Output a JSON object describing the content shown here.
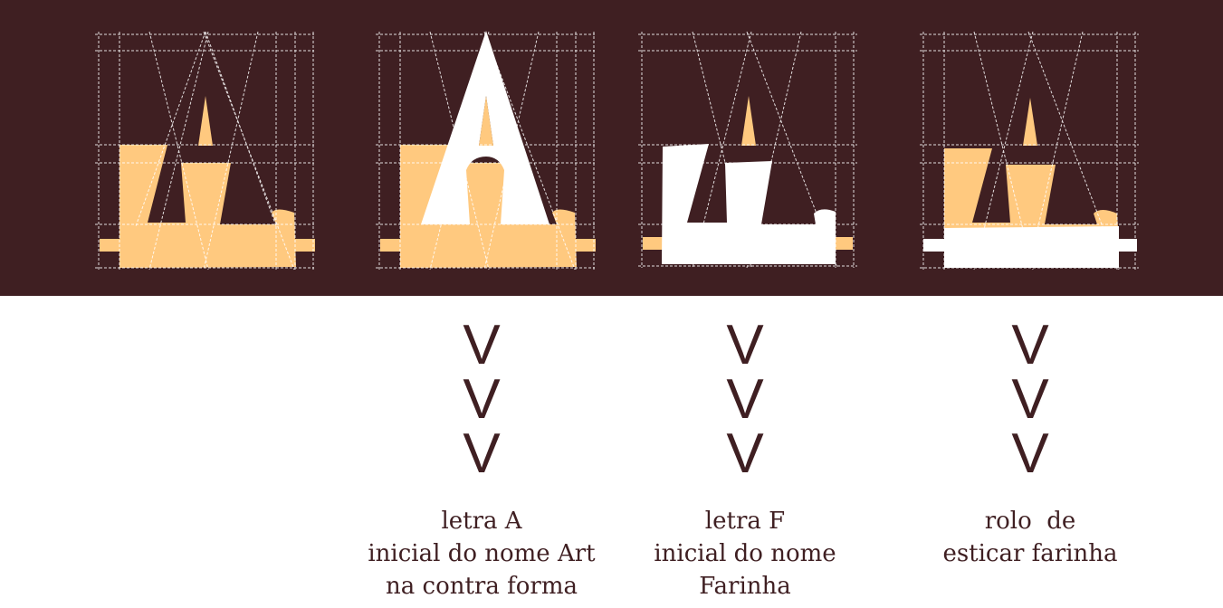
{
  "colors": {
    "background": "#3f1f22",
    "shape": "#ffc97f",
    "highlight": "#ffffff",
    "guide": "#ffffff",
    "text": "#3f1f22"
  },
  "panels": [
    {
      "highlight": "none"
    },
    {
      "highlight": "letter-a"
    },
    {
      "highlight": "letter-f"
    },
    {
      "highlight": "rolling-pin"
    }
  ],
  "arrows": [
    "V",
    "V",
    "V"
  ],
  "captions": [
    {
      "lines": [
        "letra A",
        "inicial do nome Art",
        "na contra forma"
      ]
    },
    {
      "lines": [
        "letra F",
        "inicial do nome",
        "Farinha"
      ]
    },
    {
      "lines": [
        "rolo  de",
        "esticar farinha"
      ]
    }
  ]
}
